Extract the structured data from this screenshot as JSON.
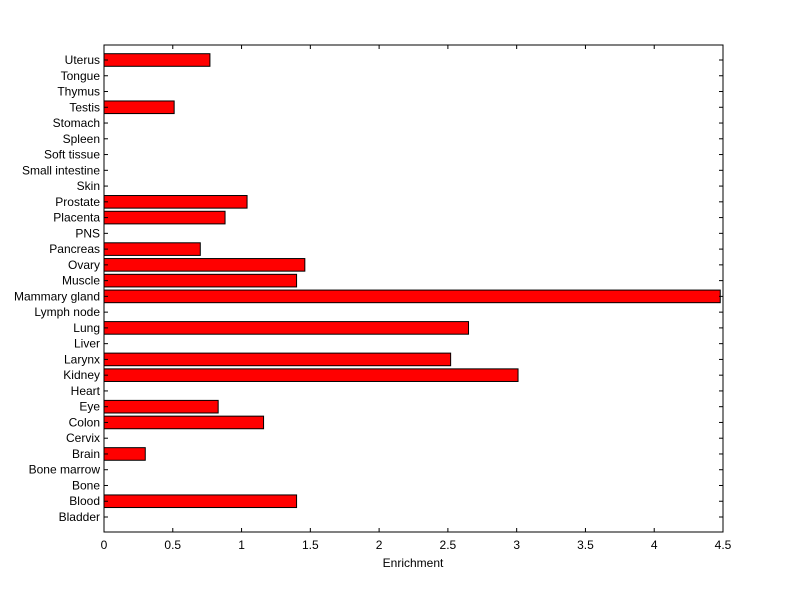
{
  "chart_data": {
    "type": "bar",
    "orientation": "horizontal",
    "xlabel": "Enrichment",
    "ylabel": "",
    "title": "",
    "xlim": [
      0,
      4.5
    ],
    "xticks": [
      "0",
      "0.5",
      "1",
      "1.5",
      "2",
      "2.5",
      "3",
      "3.5",
      "4",
      "4.5"
    ],
    "grid": false,
    "bar_color": "#ff0000",
    "categories": [
      "Bladder",
      "Blood",
      "Bone",
      "Bone marrow",
      "Brain",
      "Cervix",
      "Colon",
      "Eye",
      "Heart",
      "Kidney",
      "Larynx",
      "Liver",
      "Lung",
      "Lymph node",
      "Mammary gland",
      "Muscle",
      "Ovary",
      "Pancreas",
      "PNS",
      "Placenta",
      "Prostate",
      "Skin",
      "Small intestine",
      "Soft tissue",
      "Spleen",
      "Stomach",
      "Testis",
      "Thymus",
      "Tongue",
      "Uterus"
    ],
    "values": [
      0,
      1.4,
      0,
      0,
      0.3,
      0,
      1.16,
      0.83,
      0,
      3.01,
      2.52,
      0,
      2.65,
      0,
      4.48,
      1.4,
      1.46,
      0.7,
      0,
      0.88,
      1.04,
      0,
      0,
      0,
      0,
      0,
      0.51,
      0,
      0,
      0.77
    ]
  }
}
